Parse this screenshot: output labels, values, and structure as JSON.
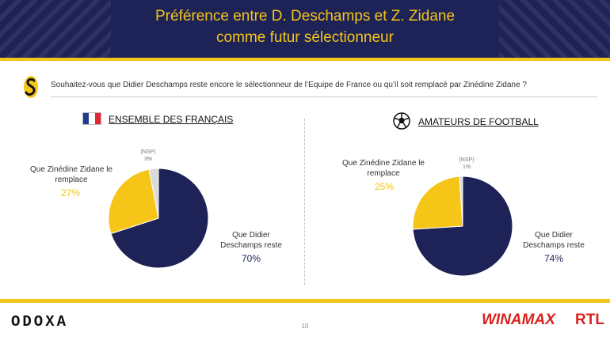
{
  "header": {
    "title_line1": "Préférence entre D. Deschamps et Z. Zidane",
    "title_line2": "comme futur sélectionneur"
  },
  "question": "Souhaitez-vous que Didier Deschamps reste encore le sélectionneur de l’Equipe de France ou qu’il soit remplacé par Zinédine Zidane ?",
  "left": {
    "title": "ENSEMBLE DES FRANÇAIS",
    "zidane_label_1": "Que Zinédine Zidane le",
    "zidane_label_2": "remplace",
    "zidane_pct": "27%",
    "deschamps_label_1": "Que Didier",
    "deschamps_label_2": "Deschamps reste",
    "deschamps_pct": "70%",
    "nsp_label": "(NSP)",
    "nsp_pct": "3%"
  },
  "right": {
    "title": "AMATEURS DE FOOTBALL",
    "zidane_label_1": "Que Zinédine Zidane le",
    "zidane_label_2": "remplace",
    "zidane_pct": "25%",
    "deschamps_label_1": "Que Didier",
    "deschamps_label_2": "Deschamps reste",
    "deschamps_pct": "74%",
    "nsp_label": "(NSP)",
    "nsp_pct": "1%"
  },
  "footer": {
    "brand": "ODOXA",
    "page": "10",
    "partner1": "WINAMAX",
    "partner2": "RTL"
  },
  "colors": {
    "navy": "#1d2357",
    "gold": "#f5c518",
    "grey": "#d9d9d9"
  },
  "chart_data": [
    {
      "type": "pie",
      "title": "ENSEMBLE DES FRANÇAIS",
      "categories": [
        "Que Didier Deschamps reste",
        "Que Zinédine Zidane le remplace",
        "(NSP)"
      ],
      "values": [
        70,
        27,
        3
      ]
    },
    {
      "type": "pie",
      "title": "AMATEURS DE FOOTBALL",
      "categories": [
        "Que Didier Deschamps reste",
        "Que Zinédine Zidane le remplace",
        "(NSP)"
      ],
      "values": [
        74,
        25,
        1
      ]
    }
  ]
}
